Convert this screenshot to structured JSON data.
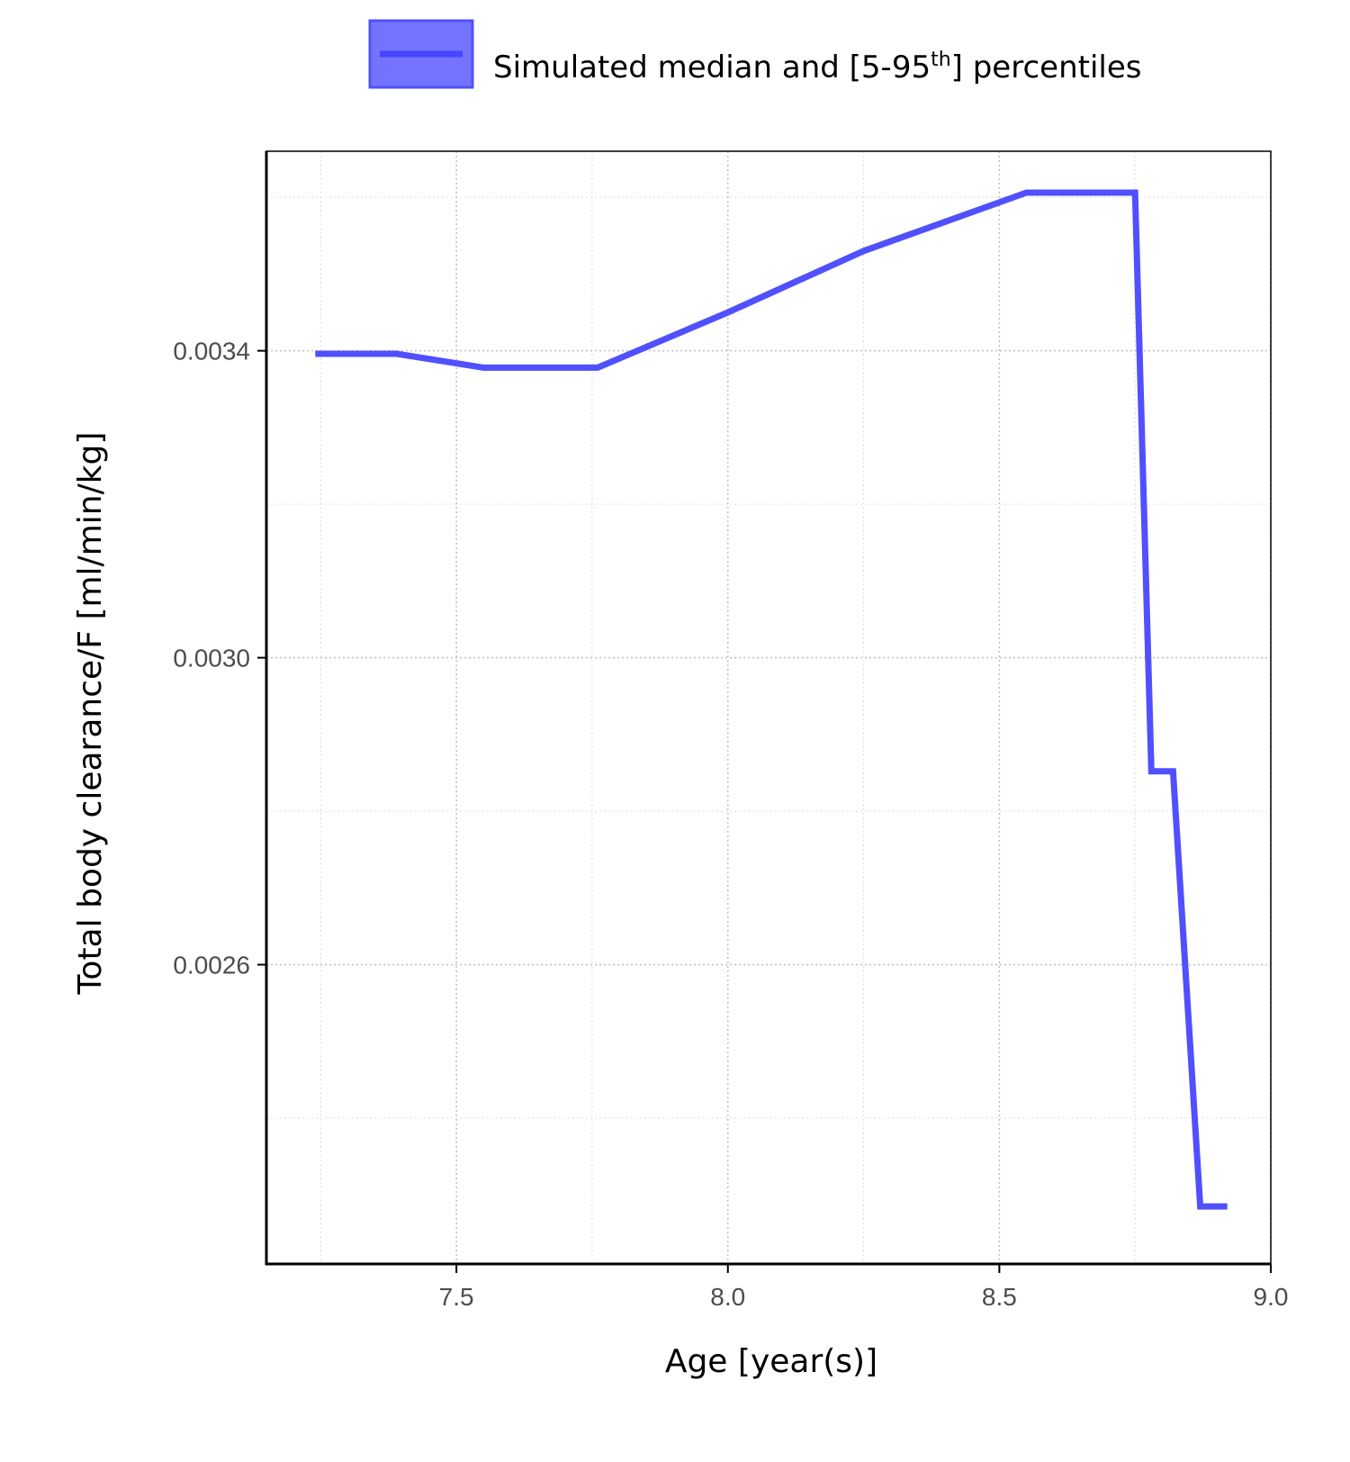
{
  "chart_data": {
    "type": "line",
    "xlabel": "Age [year(s)]",
    "ylabel": "Total body clearance/F [ml/min/kg]",
    "xlim": [
      7.15,
      9.0
    ],
    "ylim": [
      0.00221,
      0.00366
    ],
    "x_ticks": [
      "7.5",
      "8.0",
      "8.5",
      "9.0"
    ],
    "x_tick_values": [
      7.5,
      8.0,
      8.5,
      9.0
    ],
    "y_ticks": [
      "0.0026",
      "0.0030",
      "0.0034"
    ],
    "y_tick_values": [
      0.0026,
      0.003,
      0.0034
    ],
    "grid": true,
    "legend_position": "top",
    "legend": {
      "label_main": "Simulated median and [5-95",
      "label_sup": "th",
      "label_end": "] percentiles",
      "color": "#5050FF"
    },
    "series": [
      {
        "name": "Simulated median and [5-95th] percentiles",
        "color": "#5050FF",
        "x": [
          7.24,
          7.39,
          7.55,
          7.76,
          8.0,
          8.25,
          8.55,
          8.75,
          8.78,
          8.82,
          8.87,
          8.92
        ],
        "y": [
          0.003396,
          0.003396,
          0.003378,
          0.003378,
          0.00345,
          0.00353,
          0.003606,
          0.003606,
          0.002852,
          0.002852,
          0.002285,
          0.002285
        ]
      }
    ]
  }
}
